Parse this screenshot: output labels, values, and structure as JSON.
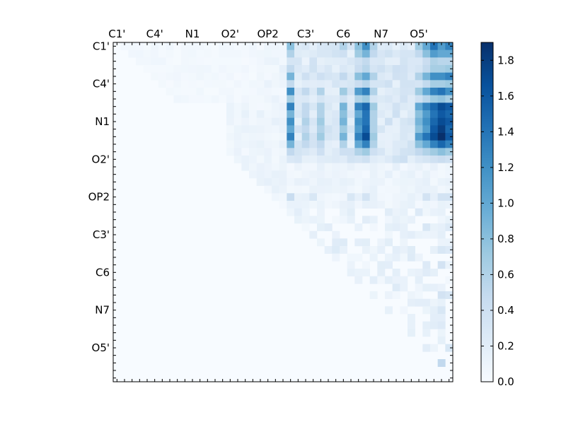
{
  "chart_data": {
    "type": "heatmap",
    "title": "",
    "xlabel": "",
    "ylabel": "",
    "grid_size": 45,
    "labeled_ticks": [
      {
        "index": 0,
        "label": "C1'"
      },
      {
        "index": 5,
        "label": "C4'"
      },
      {
        "index": 10,
        "label": "N1"
      },
      {
        "index": 15,
        "label": "O2'"
      },
      {
        "index": 20,
        "label": "OP2"
      },
      {
        "index": 25,
        "label": "C3'"
      },
      {
        "index": 30,
        "label": "C6"
      },
      {
        "index": 35,
        "label": "N7"
      },
      {
        "index": 40,
        "label": "O5'"
      }
    ],
    "colorbar": {
      "min": 0.0,
      "max": 1.9,
      "ticks": [
        "0.0",
        "0.2",
        "0.4",
        "0.6",
        "0.8",
        "1.0",
        "1.2",
        "1.4",
        "1.6",
        "1.8"
      ],
      "tick_values": [
        0.0,
        0.2,
        0.4,
        0.6,
        0.8,
        1.0,
        1.2,
        1.4,
        1.6,
        1.8
      ],
      "colormap": [
        "#f7fbff",
        "#deebf7",
        "#c6dbef",
        "#9ecae1",
        "#6baed6",
        "#4292c6",
        "#2171b5",
        "#08519c",
        "#08306b"
      ]
    },
    "legend": "colorbar-right",
    "grid": false,
    "dense_rows": {
      "0": {
        "23": 0.8,
        "25": 0.3,
        "27": 0.3,
        "30": 0.6,
        "32": 0.8,
        "33": 1.2,
        "34": 0.6,
        "40": 0.7,
        "41": 1.0,
        "42": 1.4,
        "43": 1.1,
        "44": 1.3
      },
      "1": {
        "23": 0.6,
        "25": 0.2,
        "27": 0.3,
        "30": 0.4,
        "32": 0.7,
        "33": 0.9,
        "34": 0.5,
        "40": 0.5,
        "41": 0.8,
        "42": 1.1,
        "43": 1.0,
        "44": 1.0
      },
      "4": {
        "23": 0.9,
        "25": 0.4,
        "27": 0.4,
        "30": 0.5,
        "32": 0.8,
        "33": 1.0,
        "34": 0.6,
        "40": 0.6,
        "41": 0.9,
        "42": 1.2,
        "43": 1.2,
        "44": 1.3
      },
      "6": {
        "23": 1.2,
        "25": 0.5,
        "27": 0.6,
        "30": 0.7,
        "32": 1.1,
        "33": 1.3,
        "34": 0.6,
        "40": 0.7,
        "41": 1.0,
        "42": 1.3,
        "43": 1.4,
        "44": 1.2
      },
      "8": {
        "23": 1.3,
        "25": 0.5,
        "27": 0.6,
        "30": 0.9,
        "32": 1.3,
        "33": 1.5,
        "34": 0.7,
        "40": 1.0,
        "41": 1.3,
        "42": 1.5,
        "43": 1.7,
        "44": 1.6
      },
      "9": {
        "23": 0.9,
        "25": 0.5,
        "27": 0.6,
        "30": 0.8,
        "32": 1.0,
        "33": 1.4,
        "34": 0.6,
        "40": 0.8,
        "41": 1.1,
        "42": 1.4,
        "43": 1.6,
        "44": 1.5
      },
      "10": {
        "23": 1.2,
        "25": 0.6,
        "27": 0.7,
        "30": 0.9,
        "32": 1.2,
        "33": 1.4,
        "34": 0.6,
        "40": 0.9,
        "41": 1.2,
        "42": 1.5,
        "43": 1.7,
        "44": 1.6
      },
      "11": {
        "23": 1.0,
        "25": 0.5,
        "27": 0.6,
        "30": 0.7,
        "32": 1.1,
        "33": 1.5,
        "34": 0.6,
        "40": 0.8,
        "41": 1.1,
        "42": 1.6,
        "43": 1.8,
        "44": 1.5
      },
      "12": {
        "23": 1.3,
        "25": 0.6,
        "27": 0.7,
        "30": 0.9,
        "32": 1.3,
        "33": 1.7,
        "34": 0.7,
        "40": 1.1,
        "41": 1.4,
        "42": 1.7,
        "43": 1.9,
        "44": 1.6
      },
      "13": {
        "23": 0.9,
        "25": 0.5,
        "27": 0.5,
        "30": 0.6,
        "32": 1.0,
        "33": 1.3,
        "34": 0.6,
        "40": 0.8,
        "41": 1.0,
        "42": 1.3,
        "43": 1.5,
        "44": 1.3
      },
      "14": {
        "23": 0.5,
        "25": 0.3,
        "27": 0.4,
        "30": 0.4,
        "32": 0.6,
        "33": 0.7,
        "34": 0.4,
        "40": 0.5,
        "41": 0.6,
        "42": 0.7,
        "43": 0.8,
        "44": 0.7
      }
    },
    "sparse_cells": [
      {
        "r": 20,
        "c": 23,
        "v": 0.45
      },
      {
        "r": 20,
        "c": 26,
        "v": 0.3
      },
      {
        "r": 20,
        "c": 31,
        "v": 0.3
      },
      {
        "r": 20,
        "c": 33,
        "v": 0.35
      },
      {
        "r": 20,
        "c": 41,
        "v": 0.35
      },
      {
        "r": 20,
        "c": 43,
        "v": 0.35
      },
      {
        "r": 20,
        "c": 44,
        "v": 0.35
      },
      {
        "r": 22,
        "c": 40,
        "v": 0.25
      },
      {
        "r": 24,
        "c": 41,
        "v": 0.3
      },
      {
        "r": 24,
        "c": 44,
        "v": 0.25
      },
      {
        "r": 27,
        "c": 43,
        "v": 0.3
      },
      {
        "r": 27,
        "c": 44,
        "v": 0.25
      },
      {
        "r": 29,
        "c": 41,
        "v": 0.25
      },
      {
        "r": 29,
        "c": 43,
        "v": 0.35
      },
      {
        "r": 33,
        "c": 43,
        "v": 0.35
      },
      {
        "r": 33,
        "c": 44,
        "v": 0.3
      },
      {
        "r": 35,
        "c": 43,
        "v": 0.3
      },
      {
        "r": 37,
        "c": 43,
        "v": 0.25
      },
      {
        "r": 40,
        "c": 44,
        "v": 0.3
      },
      {
        "r": 41,
        "c": 41,
        "v": 0.2
      },
      {
        "r": 42,
        "c": 42,
        "v": 0.3
      },
      {
        "r": 42,
        "c": 43,
        "v": 0.5
      }
    ]
  }
}
